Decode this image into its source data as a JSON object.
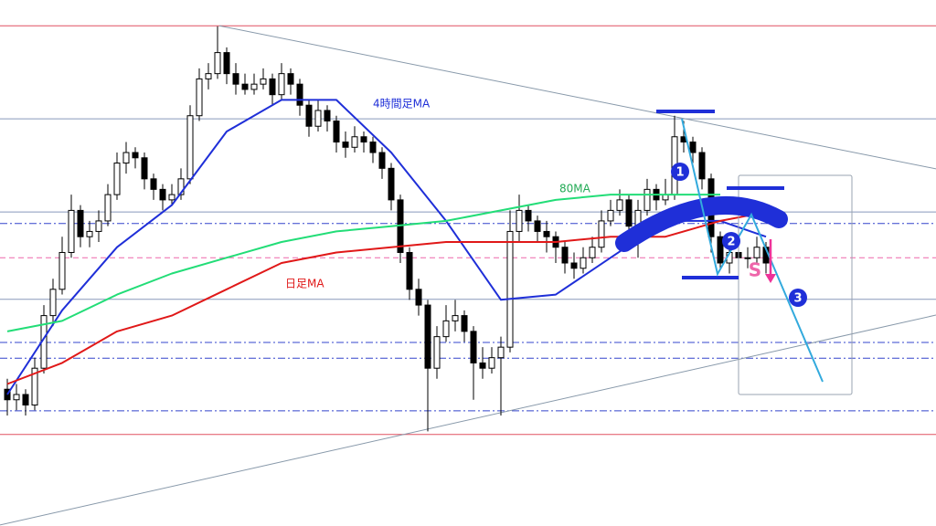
{
  "chart_data": {
    "type": "candlestick",
    "xlim": [
      -0.8,
      101.6
    ],
    "ylim": [
      0,
      100
    ],
    "up_color": "#ffffff",
    "down_color": "#000000",
    "open": [
      26,
      24,
      25,
      23,
      30,
      40,
      45,
      52,
      60,
      55,
      56,
      58,
      63,
      69,
      71,
      70,
      66,
      64,
      62,
      63,
      66,
      78,
      85,
      86,
      90,
      86,
      84,
      83,
      84,
      85,
      82,
      86,
      84,
      80,
      76,
      79,
      77,
      73,
      72,
      74,
      73,
      71,
      68,
      62,
      52,
      45,
      42,
      30,
      36,
      39,
      40,
      37,
      31,
      30,
      32,
      34,
      56,
      60,
      58,
      56,
      55,
      53,
      50,
      49,
      51,
      53,
      58,
      60,
      62,
      57,
      60,
      64,
      62,
      63,
      74,
      73,
      71,
      66,
      55,
      50,
      52,
      51,
      51,
      53
    ],
    "high": [
      28,
      27,
      26,
      32,
      42,
      47,
      55,
      63,
      61,
      58,
      60,
      65,
      71,
      73,
      72,
      71,
      67,
      65,
      65,
      68,
      80,
      87,
      88,
      95,
      91,
      88,
      86,
      86,
      87,
      86,
      88,
      87,
      85,
      81,
      81,
      80,
      78,
      75,
      76,
      75,
      74,
      72,
      69,
      63,
      53,
      47,
      43,
      38,
      42,
      43,
      41,
      38,
      34,
      34,
      36,
      60,
      63,
      61,
      59,
      58,
      56,
      54,
      52,
      53,
      55,
      60,
      62,
      64,
      63,
      62,
      66,
      65,
      66,
      78,
      77,
      74,
      72,
      67,
      56,
      54,
      53,
      53,
      55,
      54
    ],
    "low": [
      21,
      22,
      21,
      22,
      29,
      38,
      44,
      51,
      53,
      53,
      54,
      57,
      62,
      67,
      68,
      64,
      62,
      60,
      61,
      62,
      65,
      77,
      83,
      85,
      84,
      82,
      82,
      82,
      83,
      80,
      81,
      82,
      78,
      74,
      75,
      75,
      71,
      70,
      71,
      71,
      69,
      66,
      60,
      50,
      43,
      40,
      18,
      28,
      35,
      37,
      35,
      24,
      28,
      29,
      21,
      33,
      54,
      56,
      54,
      52,
      50,
      48,
      47,
      48,
      50,
      52,
      57,
      59,
      55,
      51,
      59,
      60,
      61,
      62,
      71,
      69,
      64,
      52,
      49,
      48,
      46,
      49,
      50,
      48
    ],
    "close": [
      24,
      25,
      23,
      30,
      40,
      45,
      52,
      60,
      55,
      56,
      58,
      63,
      69,
      71,
      70,
      66,
      64,
      62,
      63,
      66,
      78,
      85,
      86,
      90,
      86,
      84,
      83,
      84,
      85,
      82,
      86,
      84,
      80,
      76,
      79,
      77,
      73,
      72,
      74,
      73,
      71,
      68,
      62,
      52,
      45,
      42,
      30,
      36,
      39,
      40,
      37,
      31,
      30,
      32,
      34,
      56,
      60,
      58,
      56,
      55,
      53,
      50,
      49,
      51,
      53,
      58,
      60,
      62,
      57,
      60,
      64,
      62,
      63,
      74,
      73,
      71,
      66,
      55,
      50,
      52,
      51,
      51,
      53,
      50
    ],
    "series": [
      {
        "name": "4時間足MA",
        "color": "#1f2fd8",
        "x": [
          0,
          6,
          12,
          18,
          24,
          30,
          36,
          42,
          48,
          54,
          60,
          66,
          72,
          78,
          83
        ],
        "values": [
          25,
          41,
          53,
          61,
          75,
          81,
          81,
          71,
          58,
          43,
          44,
          51,
          58,
          58,
          55
        ]
      },
      {
        "name": "80MA",
        "color": "#22dd77",
        "x": [
          0,
          6,
          12,
          18,
          24,
          30,
          36,
          42,
          48,
          54,
          60,
          66,
          72,
          78
        ],
        "values": [
          37,
          39,
          44,
          48,
          51,
          54,
          56,
          57,
          58,
          60,
          62,
          63,
          63,
          63
        ]
      },
      {
        "name": "日足MA",
        "color": "#e01818",
        "x": [
          0,
          6,
          12,
          18,
          24,
          30,
          36,
          42,
          48,
          54,
          60,
          66,
          72,
          78,
          81
        ],
        "values": [
          27,
          31,
          37,
          40,
          45,
          50,
          52,
          53,
          54,
          54,
          54,
          55,
          55,
          58,
          59
        ]
      }
    ],
    "levels": [
      {
        "value": 95.1,
        "color": "#e05060",
        "dash": "solid"
      },
      {
        "value": 17.4,
        "color": "#e05060",
        "dash": "solid"
      },
      {
        "value": 77.4,
        "color": "#8899bb",
        "dash": "solid"
      },
      {
        "value": 59.7,
        "color": "#8899bb",
        "dash": "solid"
      },
      {
        "value": 43.1,
        "color": "#8899bb",
        "dash": "solid"
      },
      {
        "value": 57.5,
        "color": "#3344cc",
        "dash": "dashdot"
      },
      {
        "value": 34.9,
        "color": "#3344cc",
        "dash": "dashdot"
      },
      {
        "value": 31.9,
        "color": "#3344cc",
        "dash": "dashdot"
      },
      {
        "value": 21.9,
        "color": "#3344cc",
        "dash": "dashdot"
      },
      {
        "value": 51.0,
        "color": "#ee66aa",
        "dash": "dashed"
      }
    ],
    "trendlines": [
      {
        "color": "#8899aa",
        "x": [
          23.2,
          101.6
        ],
        "values": [
          95.1,
          67.9
        ]
      },
      {
        "color": "#8899aa",
        "x": [
          -0.8,
          101.6
        ],
        "values": [
          0.2,
          40.1
        ]
      }
    ],
    "annotations": {
      "steps": [
        "1",
        "2",
        "3"
      ],
      "signal": "S"
    }
  }
}
